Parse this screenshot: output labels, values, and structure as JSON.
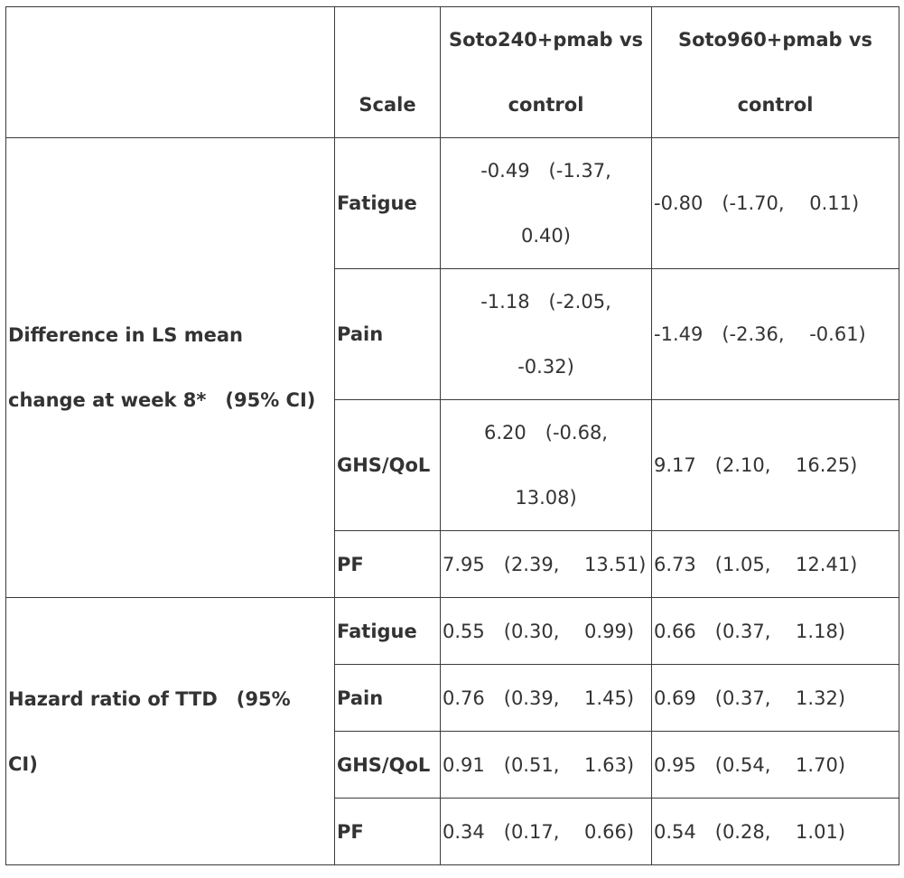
{
  "header": {
    "scale": "Scale",
    "col1_line1": "Soto240+pmab vs",
    "col1_line2": "control",
    "col2_line1": "Soto960+pmab vs",
    "col2_line2": "control"
  },
  "group1": {
    "label_line1": "Difference in LS mean",
    "label_line2": "change at week 8*　(95% CI)",
    "rows": [
      {
        "scale": "Fatigue",
        "c1_line1": "-0.49　(-1.37,",
        "c1_line2": "0.40)",
        "c2": "-0.80　(-1.70,　 0.11)"
      },
      {
        "scale": "Pain",
        "c1_line1": "-1.18　(-2.05,",
        "c1_line2": "-0.32)",
        "c2": "-1.49　(-2.36,　 -0.61)"
      },
      {
        "scale": "GHS/QoL",
        "c1_line1": "6.20　(-0.68,",
        "c1_line2": "13.08)",
        "c2": "9.17　(2.10,　 16.25)"
      },
      {
        "scale": "PF",
        "c1": "7.95　(2.39,　 13.51)",
        "c2": "6.73　(1.05,　 12.41)"
      }
    ]
  },
  "group2": {
    "label_line1": "Hazard ratio of TTD　(95%",
    "label_line2": "CI)",
    "rows": [
      {
        "scale": "Fatigue",
        "c1": "0.55　(0.30,　 0.99)",
        "c2": "0.66　(0.37,　 1.18)"
      },
      {
        "scale": "Pain",
        "c1": "0.76　(0.39,　 1.45)",
        "c2": "0.69　(0.37,　 1.32)"
      },
      {
        "scale": "GHS/QoL",
        "c1": "0.91　(0.51,　 1.63)",
        "c2": "0.95　(0.54,　 1.70)"
      },
      {
        "scale": "PF",
        "c1": "0.34　(0.17,　 0.66)",
        "c2": "0.54　(0.28,　 1.01)"
      }
    ]
  }
}
